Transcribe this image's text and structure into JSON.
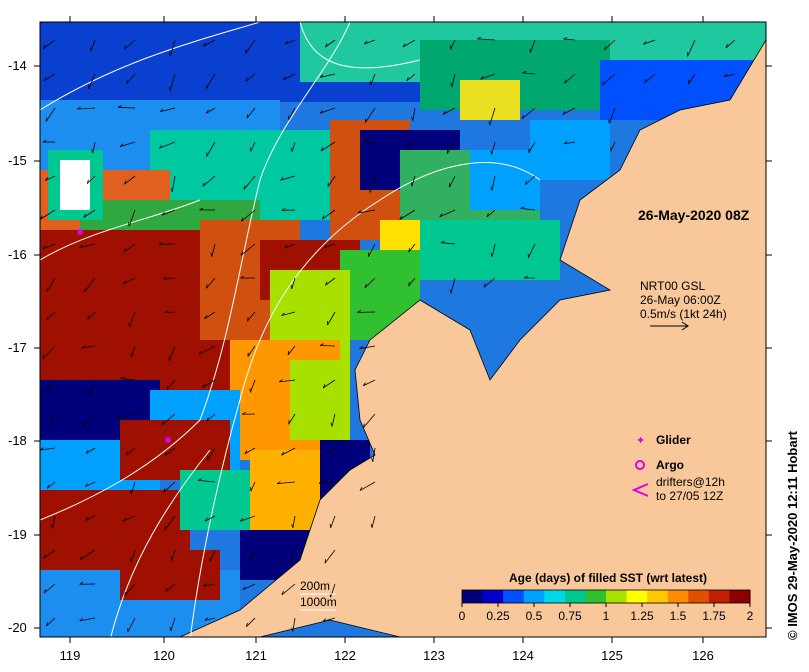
{
  "map": {
    "timestamp_label": "26-May-2020 08Z",
    "credit": "© IMOS 29-May-2020 12:11 Hobart",
    "lat_ticks": [
      "-14",
      "-15",
      "-16",
      "-17",
      "-18",
      "-19",
      "-20"
    ],
    "lon_ticks": [
      "119",
      "120",
      "121",
      "122",
      "123",
      "124",
      "125",
      "126"
    ],
    "current_legend": {
      "line1": "NRT00 GSL",
      "line2": "26-May 06:00Z",
      "line3": "0.5m/s (1kt 24h)"
    },
    "markers": {
      "glider": "Glider",
      "argo": "Argo",
      "drifters_line1": "drifters@12h",
      "drifters_line2": "to 27/05 12Z"
    },
    "isobaths": [
      "200m",
      "1000m"
    ],
    "colorbar": {
      "title": "Age (days) of filled SST (wrt latest)",
      "ticks": [
        "0",
        "0.25",
        "0.5",
        "0.75",
        "1",
        "1.25",
        "1.5",
        "1.75",
        "2"
      ],
      "colors": [
        "#00007a",
        "#0000c8",
        "#0050ff",
        "#00a0ff",
        "#00d8e8",
        "#00c890",
        "#30c030",
        "#a8e000",
        "#ffff00",
        "#ffc800",
        "#ff8c00",
        "#e05000",
        "#c02000",
        "#8c0000"
      ]
    },
    "colors": {
      "land": "#f9c89a",
      "marker_magenta": "#e000e0",
      "isobath": "#ffffff",
      "arrow": "#000000"
    }
  }
}
